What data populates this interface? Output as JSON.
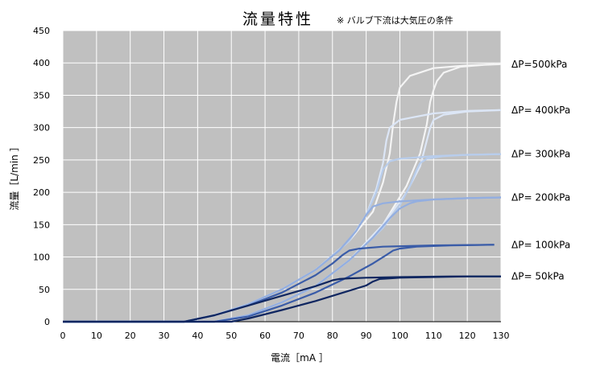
{
  "chart_data": {
    "type": "line",
    "title": "流量特性",
    "subtitle": "※ バルブ下流は大気圧の条件",
    "xlabel": "電流［mA ］",
    "ylabel": "流量［L/min ］",
    "xlim": [
      0,
      130
    ],
    "ylim": [
      0,
      450
    ],
    "xticks": [
      0,
      10,
      20,
      30,
      40,
      50,
      60,
      70,
      80,
      90,
      100,
      110,
      120,
      130
    ],
    "yticks": [
      0,
      50,
      100,
      150,
      200,
      250,
      300,
      350,
      400,
      450
    ],
    "grid": true,
    "background": "#c0c0c0",
    "series": [
      {
        "name": "ΔP=500kPa",
        "color": "#f4f4f4",
        "rising": {
          "x": [
            0,
            36,
            45,
            55,
            65,
            75,
            85,
            92,
            95,
            97,
            98,
            99,
            100,
            103,
            110,
            120,
            128
          ],
          "y": [
            0,
            0,
            10,
            27,
            50,
            80,
            125,
            170,
            215,
            260,
            305,
            340,
            362,
            380,
            392,
            396,
            398
          ]
        },
        "falling": {
          "x": [
            0,
            45,
            55,
            65,
            75,
            85,
            95,
            102,
            106,
            108,
            109,
            110,
            111,
            113,
            118,
            125,
            130
          ],
          "y": [
            0,
            0,
            10,
            30,
            55,
            95,
            150,
            210,
            260,
            305,
            340,
            358,
            372,
            385,
            394,
            397,
            398
          ]
        }
      },
      {
        "name": "ΔP= 400kPa",
        "color": "#dce6f6",
        "rising": {
          "x": [
            0,
            36,
            45,
            55,
            65,
            75,
            85,
            90,
            93,
            95,
            96,
            97,
            100,
            110,
            120,
            130
          ],
          "y": [
            0,
            0,
            10,
            27,
            50,
            80,
            125,
            165,
            205,
            245,
            280,
            300,
            312,
            322,
            326,
            327
          ]
        },
        "falling": {
          "x": [
            0,
            45,
            55,
            65,
            75,
            85,
            95,
            102,
            106,
            108,
            109,
            110,
            113,
            120,
            130
          ],
          "y": [
            0,
            0,
            10,
            30,
            55,
            95,
            150,
            200,
            240,
            280,
            300,
            312,
            320,
            325,
            327
          ]
        }
      },
      {
        "name": "ΔP= 300kPa",
        "color": "#b8cdec",
        "rising": {
          "x": [
            0,
            36,
            45,
            55,
            65,
            75,
            85,
            90,
            93,
            95,
            97,
            100,
            110,
            120,
            130
          ],
          "y": [
            0,
            0,
            10,
            27,
            50,
            80,
            125,
            165,
            200,
            235,
            248,
            252,
            256,
            258,
            259
          ]
        },
        "falling": {
          "x": [
            0,
            45,
            55,
            65,
            75,
            85,
            95,
            100,
            103,
            105,
            106,
            108,
            113,
            120,
            130
          ],
          "y": [
            0,
            0,
            10,
            30,
            55,
            95,
            145,
            180,
            210,
            235,
            245,
            252,
            256,
            258,
            259
          ]
        }
      },
      {
        "name": "ΔP= 200kPa",
        "color": "#93aee0",
        "rising": {
          "x": [
            0,
            36,
            45,
            55,
            65,
            75,
            82,
            87,
            90,
            92,
            95,
            100,
            110,
            120,
            130
          ],
          "y": [
            0,
            0,
            10,
            27,
            50,
            80,
            110,
            140,
            165,
            178,
            183,
            186,
            189,
            191,
            192
          ]
        },
        "falling": {
          "x": [
            0,
            45,
            55,
            65,
            75,
            85,
            92,
            97,
            100,
            103,
            105,
            110,
            120,
            130
          ],
          "y": [
            0,
            0,
            10,
            30,
            55,
            95,
            130,
            160,
            175,
            183,
            186,
            189,
            191,
            192
          ]
        }
      },
      {
        "name": "ΔP= 100kPa",
        "color": "#3a5ca8",
        "rising": {
          "x": [
            0,
            36,
            45,
            55,
            65,
            75,
            80,
            83,
            85,
            88,
            95,
            110,
            128
          ],
          "y": [
            0,
            0,
            10,
            25,
            45,
            72,
            90,
            103,
            110,
            113,
            116,
            118,
            119
          ]
        },
        "falling": {
          "x": [
            0,
            45,
            55,
            65,
            75,
            85,
            92,
            96,
            98,
            100,
            105,
            115,
            128
          ],
          "y": [
            0,
            0,
            8,
            25,
            45,
            70,
            90,
            103,
            110,
            113,
            116,
            118,
            119
          ]
        }
      },
      {
        "name": "ΔP= 50kPa",
        "color": "#0f2660",
        "rising": {
          "x": [
            0,
            36,
            45,
            55,
            65,
            75,
            79,
            80,
            82,
            85,
            90,
            100,
            115,
            130
          ],
          "y": [
            0,
            0,
            10,
            25,
            40,
            55,
            62,
            64,
            66,
            67,
            68,
            69,
            70,
            70
          ]
        },
        "falling": {
          "x": [
            0,
            50,
            55,
            65,
            75,
            85,
            90,
            92,
            94,
            97,
            100,
            110,
            120,
            130
          ],
          "y": [
            0,
            0,
            5,
            18,
            32,
            48,
            56,
            62,
            66,
            67,
            68,
            69,
            70,
            70
          ]
        }
      }
    ]
  }
}
